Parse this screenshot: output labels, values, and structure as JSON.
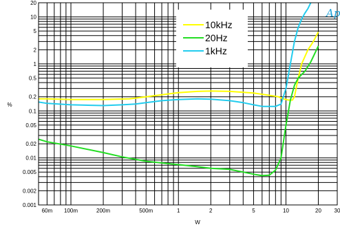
{
  "logo_text": "Ap",
  "chart_data": {
    "type": "line",
    "title": "",
    "xlabel": "W",
    "ylabel": "%",
    "x_scale": "log",
    "y_scale": "log",
    "xlim": [
      0.05,
      30
    ],
    "ylim": [
      0.001,
      20
    ],
    "grid": true,
    "legend_position": "top-center",
    "x_tick_labels": [
      {
        "value": 0.06,
        "label": "60m"
      },
      {
        "value": 0.1,
        "label": "100m"
      },
      {
        "value": 0.2,
        "label": "200m"
      },
      {
        "value": 0.5,
        "label": "500m"
      },
      {
        "value": 1,
        "label": "1"
      },
      {
        "value": 2,
        "label": "2"
      },
      {
        "value": 5,
        "label": "5"
      },
      {
        "value": 10,
        "label": "10"
      },
      {
        "value": 20,
        "label": "20"
      },
      {
        "value": 30,
        "label": "30"
      }
    ],
    "y_tick_labels": [
      {
        "value": 20,
        "label": "20"
      },
      {
        "value": 10,
        "label": "10"
      },
      {
        "value": 5,
        "label": "5"
      },
      {
        "value": 2,
        "label": "2"
      },
      {
        "value": 1,
        "label": "1"
      },
      {
        "value": 0.5,
        "label": "0.5"
      },
      {
        "value": 0.2,
        "label": "0.2"
      },
      {
        "value": 0.1,
        "label": "0.1"
      },
      {
        "value": 0.05,
        "label": "0.05"
      },
      {
        "value": 0.02,
        "label": "0.02"
      },
      {
        "value": 0.01,
        "label": "0.01"
      },
      {
        "value": 0.005,
        "label": "0.005"
      },
      {
        "value": 0.002,
        "label": "0.002"
      },
      {
        "value": 0.001,
        "label": "0.001"
      }
    ],
    "series": [
      {
        "name": "10kHz",
        "color": "#ffff00",
        "points": [
          [
            0.05,
            0.18
          ],
          [
            0.06,
            0.18
          ],
          [
            0.1,
            0.175
          ],
          [
            0.2,
            0.175
          ],
          [
            0.35,
            0.18
          ],
          [
            0.5,
            0.2
          ],
          [
            1,
            0.245
          ],
          [
            1.5,
            0.26
          ],
          [
            2,
            0.265
          ],
          [
            3,
            0.26
          ],
          [
            5,
            0.24
          ],
          [
            7,
            0.215
          ],
          [
            8.5,
            0.2
          ],
          [
            9.5,
            0.18
          ],
          [
            10.5,
            0.17
          ],
          [
            11.5,
            0.17
          ],
          [
            12,
            0.2
          ],
          [
            13,
            0.5
          ],
          [
            14,
            1.0
          ],
          [
            16,
            2.0
          ],
          [
            18,
            3.0
          ],
          [
            20,
            4.8
          ]
        ]
      },
      {
        "name": "20Hz",
        "color": "#22dd22",
        "points": [
          [
            0.05,
            0.025
          ],
          [
            0.06,
            0.022
          ],
          [
            0.1,
            0.018
          ],
          [
            0.2,
            0.013
          ],
          [
            0.3,
            0.0105
          ],
          [
            0.5,
            0.0085
          ],
          [
            1,
            0.0072
          ],
          [
            1.5,
            0.0065
          ],
          [
            2,
            0.006
          ],
          [
            3,
            0.0057
          ],
          [
            4,
            0.005
          ],
          [
            5,
            0.0045
          ],
          [
            6,
            0.0042
          ],
          [
            7,
            0.0043
          ],
          [
            8,
            0.0055
          ],
          [
            9,
            0.01
          ],
          [
            10,
            0.05
          ],
          [
            11,
            0.17
          ],
          [
            12,
            0.35
          ],
          [
            13,
            0.5
          ],
          [
            15,
            0.7
          ],
          [
            17,
            1.1
          ],
          [
            20,
            2.4
          ]
        ]
      },
      {
        "name": "1kHz",
        "color": "#22ccee",
        "points": [
          [
            0.05,
            0.155
          ],
          [
            0.06,
            0.145
          ],
          [
            0.1,
            0.135
          ],
          [
            0.2,
            0.13
          ],
          [
            0.3,
            0.135
          ],
          [
            0.4,
            0.14
          ],
          [
            0.5,
            0.15
          ],
          [
            0.7,
            0.165
          ],
          [
            1,
            0.175
          ],
          [
            1.5,
            0.18
          ],
          [
            2,
            0.178
          ],
          [
            3,
            0.165
          ],
          [
            4,
            0.15
          ],
          [
            5,
            0.135
          ],
          [
            6,
            0.125
          ],
          [
            7,
            0.125
          ],
          [
            8,
            0.125
          ],
          [
            9,
            0.14
          ],
          [
            10,
            0.3
          ],
          [
            11,
            1.0
          ],
          [
            12,
            3.0
          ],
          [
            13,
            6.0
          ],
          [
            14,
            9.0
          ],
          [
            15,
            12.0
          ],
          [
            16,
            15.0
          ],
          [
            17,
            20.0
          ]
        ]
      }
    ]
  }
}
